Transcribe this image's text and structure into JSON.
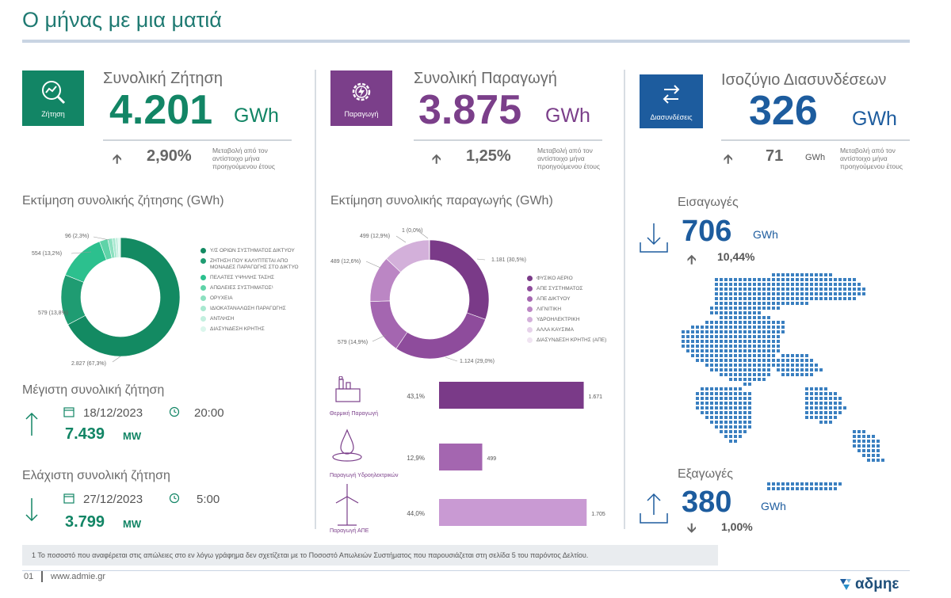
{
  "page_title": "Ο μήνας με μια ματιά",
  "demand": {
    "icon_label": "Ζήτηση",
    "icon": "chart-magnifier-icon",
    "label": "Συνολική Ζήτηση",
    "value": "4.201",
    "unit": "GWh",
    "change": "2,90%",
    "change_direction": "up",
    "note": "Μεταβολή από τον αντίστοιχο μήνα προηγούμενου έτους",
    "color": "#128565"
  },
  "production": {
    "icon_label": "Παραγωγή",
    "icon": "gear-bolt-icon",
    "label": "Συνολική Παραγωγή",
    "value": "3.875",
    "unit": "GWh",
    "change": "1,25%",
    "change_direction": "up",
    "note": "Μεταβολή από τον αντίστοιχο μήνα προηγούμενου έτους",
    "color": "#7b3f8a"
  },
  "interconnections": {
    "icon_label": "Διασυνδέσεις",
    "icon": "exchange-arrows-icon",
    "label": "Ισοζύγιο Διασυνδέσεων",
    "value": "326",
    "unit": "GWh",
    "change": "71",
    "change_unit": "GWh",
    "change_direction": "up",
    "note": "Μεταβολή από τον αντίστοιχο μήνα προηγούμενου έτους",
    "color": "#1d5c9e"
  },
  "demand_chart_title": "Εκτίμηση συνολικής ζήτησης (GWh)",
  "production_chart_title": "Εκτίμηση συνολικής παραγωγής (GWh)",
  "chart_data": [
    {
      "type": "pie",
      "title": "Εκτίμηση συνολικής ζήτησης (GWh)",
      "donut": true,
      "legend_position": "right",
      "categories": [
        "Υ/Σ ΟΡΙΩΝ ΣΥΣΤΗΜΑΤΟΣ ΔΙΚΤΥΟΥ",
        "ΖΗΤΗΣΗ ΠΟΥ ΚΑΛΥΠΤΕΤΑΙ ΑΠΟ ΜΟΝΑΔΕΣ ΠΑΡΑΓΩΓΗΣ ΣΤΟ ΔΙΚΤΥΟ",
        "ΠΕΛΑΤΕΣ ΥΨΗΛΗΣ ΤΑΣΗΣ",
        "ΑΠΩΛΕΙΕΣ ΣΥΣΤΗΜΑΤΟΣ¹",
        "ΟΡΥΧΕΙΑ",
        "ΙΔΙΟΚΑΤΑΝΑΛΩΣΗ ΠΑΡΑΓΩΓΗΣ",
        "ΑΝΤΛΗΣΗ",
        "ΔΙΑΣΥΝΔΕΣΗ ΚΡΗΤΗΣ"
      ],
      "values": [
        2827,
        579,
        554,
        96,
        52,
        35,
        30,
        28
      ],
      "data_labels": [
        "2.827 (67,3%)",
        "579 (13,8%)",
        "554 (13,2%)",
        "96 (2,3%)",
        "",
        "",
        "",
        ""
      ],
      "colors": [
        "#138a62",
        "#1f9c72",
        "#2cc08e",
        "#5fd3a8",
        "#8ce0c0",
        "#a8e8d0",
        "#c3efdf",
        "#dbf6ec"
      ]
    },
    {
      "type": "pie",
      "title": "Εκτίμηση συνολικής παραγωγής (GWh)",
      "donut": true,
      "legend_position": "right",
      "categories": [
        "ΦΥΣΙΚΟ ΑΕΡΙΟ",
        "ΑΠΕ ΣΥΣΤΗΜΑΤΟΣ",
        "ΑΠΕ ΔΙΚΤΥΟΥ",
        "ΛΙΓΝΙΤΙΚΗ",
        "ΥΔΡΟΗΛΕΚΤΡΙΚΗ",
        "ΑΛΛΑ ΚΑΥΣΙΜΑ",
        "ΔΙΑΣΥΝΔΕΣΗ ΚΡΗΤΗΣ (ΑΠΕ)"
      ],
      "values": [
        1181,
        1124,
        579,
        489,
        499,
        1,
        2
      ],
      "data_labels": [
        "1.181 (30,5%)",
        "1.124 (29,0%)",
        "579 (14,9%)",
        "489 (12,6%)",
        "499 (12,9%)",
        "1 (0,0%)",
        ""
      ],
      "colors": [
        "#7a3a88",
        "#8e4c9c",
        "#a466b0",
        "#bb86c4",
        "#d3b0da",
        "#e6d2ea",
        "#f0e4f2"
      ]
    },
    {
      "type": "bar",
      "orientation": "horizontal",
      "categories": [
        "Θερμική Παραγωγή",
        "Παραγωγή Υδροηλεκτρικών",
        "Παραγωγή ΑΠΕ"
      ],
      "values": [
        1671,
        499,
        1705
      ],
      "value_labels": [
        "1.671",
        "499",
        "1.705"
      ],
      "percent_labels": [
        "43,1%",
        "12,9%",
        "44,0%"
      ],
      "icons": [
        "power-plant-icon",
        "water-drop-icon",
        "wind-turbine-icon"
      ],
      "colors": [
        "#7a3a88",
        "#a466b0",
        "#c99ad3"
      ],
      "xlim": [
        0,
        2000
      ]
    }
  ],
  "max_demand": {
    "title": "Μέγιστη συνολική ζήτηση",
    "date": "18/12/2023",
    "time": "20:00",
    "value": "7.439",
    "unit": "MW"
  },
  "min_demand": {
    "title": "Ελάχιστη συνολική ζήτηση",
    "date": "27/12/2023",
    "time": "5:00",
    "value": "3.799",
    "unit": "MW"
  },
  "imports": {
    "title": "Εισαγωγές",
    "value": "706",
    "unit": "GWh",
    "change": "10,44%",
    "change_direction": "up"
  },
  "exports": {
    "title": "Εξαγωγές",
    "value": "380",
    "unit": "GWh",
    "change": "1,00%",
    "change_direction": "down"
  },
  "footnote": "1   Το ποσοστό που αναφέρεται στις απώλειες στο εν λόγω γράφημα δεν  σχετίζεται με το Ποσοστό Απωλειών Συστήματος που παρουσιάζεται στη σελίδα 5 του παρόντος Δελτίου.",
  "footer": {
    "page_number": "01",
    "url": "www.admie.gr",
    "logo_text": "αδμηε"
  },
  "arrows": {
    "up": "🡩",
    "down": "🡫"
  }
}
